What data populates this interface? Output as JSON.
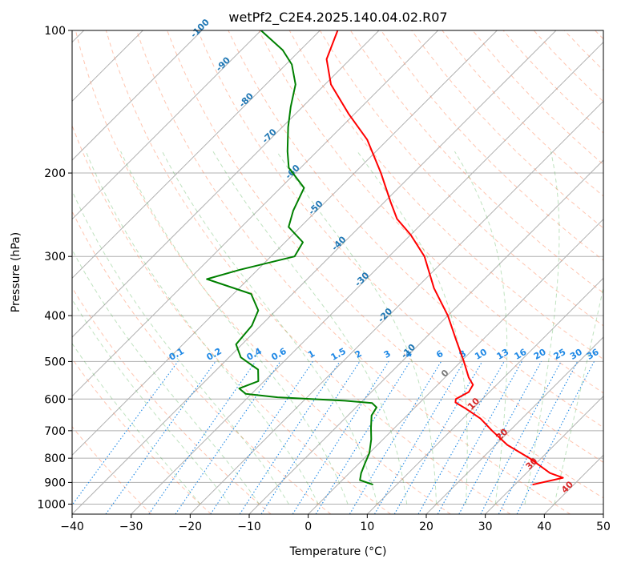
{
  "chart_data": {
    "type": "line",
    "chart_kind": "skew-t log-p sounding",
    "title": "wetPf2_C2E4.2025.140.04.02.R07",
    "xlabel": "Temperature (°C)",
    "ylabel": "Pressure (hPa)",
    "xlim": [
      -40,
      50
    ],
    "ylim": [
      1050,
      100
    ],
    "yscale": "log",
    "grid": true,
    "x_ticks": [
      -40,
      -30,
      -20,
      -10,
      0,
      10,
      20,
      30,
      40,
      50
    ],
    "y_ticks": [
      100,
      200,
      300,
      400,
      500,
      600,
      700,
      800,
      900,
      1000
    ],
    "isotherm_labels": [
      -100,
      -90,
      -80,
      -70,
      -60,
      -50,
      -40,
      -30,
      -20,
      -10
    ],
    "mixing_ratio_labels": [
      "0.1",
      "0.2",
      "0.4",
      "0.6",
      "1",
      "1.5",
      "2",
      "3",
      "4",
      "6",
      "8",
      "10",
      "13",
      "16",
      "20",
      "25",
      "30",
      "36"
    ],
    "zero_isotherm_label": "0",
    "moist_adiabat_labels": [
      "10",
      "20",
      "30",
      "40"
    ],
    "colors": {
      "temperature": "#ff0000",
      "dewpoint": "#008000",
      "isotherm_label": "#1f77b4",
      "mixing_ratio": "#1e88e5",
      "dry_adiabat": "#ff7f50",
      "moist_adiabat": "#2ca02c",
      "moist_label": "#d62728",
      "grid": "#b0b0b0"
    },
    "series": [
      {
        "name": "",
        "color": "#ff0000",
        "points": [
          {
            "p": 910,
            "t": 33.0
          },
          {
            "p": 880,
            "t": 37.0
          },
          {
            "p": 860,
            "t": 34.0
          },
          {
            "p": 800,
            "t": 28.0
          },
          {
            "p": 750,
            "t": 22.0
          },
          {
            "p": 700,
            "t": 17.0
          },
          {
            "p": 660,
            "t": 13.0
          },
          {
            "p": 630,
            "t": 9.0
          },
          {
            "p": 610,
            "t": 6.0
          },
          {
            "p": 600,
            "t": 5.5
          },
          {
            "p": 580,
            "t": 6.5
          },
          {
            "p": 560,
            "t": 6.0
          },
          {
            "p": 540,
            "t": 4.0
          },
          {
            "p": 500,
            "t": 0.5
          },
          {
            "p": 450,
            "t": -4.5
          },
          {
            "p": 400,
            "t": -10.0
          },
          {
            "p": 350,
            "t": -17.0
          },
          {
            "p": 300,
            "t": -24.0
          },
          {
            "p": 270,
            "t": -30.0
          },
          {
            "p": 250,
            "t": -35.0
          },
          {
            "p": 230,
            "t": -39.0
          },
          {
            "p": 200,
            "t": -45.5
          },
          {
            "p": 170,
            "t": -53.5
          },
          {
            "p": 150,
            "t": -61.0
          },
          {
            "p": 130,
            "t": -69.0
          },
          {
            "p": 115,
            "t": -74.0
          },
          {
            "p": 100,
            "t": -77.0
          }
        ]
      },
      {
        "name": "",
        "color": "#008000",
        "points": [
          {
            "p": 910,
            "t": 6.0
          },
          {
            "p": 890,
            "t": 3.0
          },
          {
            "p": 860,
            "t": 2.0
          },
          {
            "p": 820,
            "t": 1.0
          },
          {
            "p": 780,
            "t": 0.0
          },
          {
            "p": 730,
            "t": -2.0
          },
          {
            "p": 690,
            "t": -4.0
          },
          {
            "p": 650,
            "t": -6.0
          },
          {
            "p": 625,
            "t": -6.5
          },
          {
            "p": 612,
            "t": -8.0
          },
          {
            "p": 605,
            "t": -13.0
          },
          {
            "p": 595,
            "t": -25.0
          },
          {
            "p": 585,
            "t": -31.0
          },
          {
            "p": 570,
            "t": -33.0
          },
          {
            "p": 550,
            "t": -31.0
          },
          {
            "p": 520,
            "t": -33.0
          },
          {
            "p": 490,
            "t": -38.0
          },
          {
            "p": 460,
            "t": -41.0
          },
          {
            "p": 420,
            "t": -41.5
          },
          {
            "p": 390,
            "t": -43.0
          },
          {
            "p": 360,
            "t": -47.0
          },
          {
            "p": 335,
            "t": -57.0
          },
          {
            "p": 320,
            "t": -53.0
          },
          {
            "p": 300,
            "t": -46.0
          },
          {
            "p": 280,
            "t": -47.0
          },
          {
            "p": 260,
            "t": -52.0
          },
          {
            "p": 240,
            "t": -54.0
          },
          {
            "p": 215,
            "t": -56.0
          },
          {
            "p": 195,
            "t": -62.0
          },
          {
            "p": 180,
            "t": -65.0
          },
          {
            "p": 160,
            "t": -69.0
          },
          {
            "p": 145,
            "t": -72.0
          },
          {
            "p": 130,
            "t": -75.0
          },
          {
            "p": 118,
            "t": -79.0
          },
          {
            "p": 110,
            "t": -83.0
          },
          {
            "p": 100,
            "t": -90.0
          }
        ]
      }
    ]
  }
}
